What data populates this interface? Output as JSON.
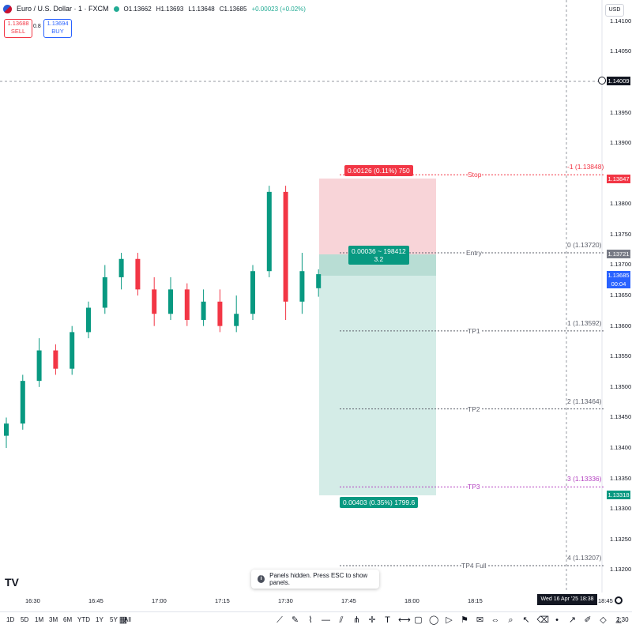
{
  "header": {
    "symbol": "Euro / U.S. Dollar · 1 · FXCM",
    "open": "O1.13662",
    "high": "H1.13693",
    "low": "L1.13648",
    "close": "C1.13685",
    "change": "+0.00023 (+0.02%)"
  },
  "trade": {
    "sell_price": "1.13688",
    "sell_label": "SELL",
    "spread": "0.8",
    "buy_price": "1.13694",
    "buy_label": "BUY"
  },
  "currency": "USD",
  "price_axis": {
    "ticks": [
      "1.14100",
      "1.14050",
      "1.13950",
      "1.13900",
      "1.13800",
      "1.13750",
      "1.13700",
      "1.13650",
      "1.13600",
      "1.13550",
      "1.13500",
      "1.13450",
      "1.13400",
      "1.13350",
      "1.13300",
      "1.13250",
      "1.13200"
    ],
    "crosshair_price": "1.14009",
    "stop_tag": "1.13847",
    "entry_tag": "1.13721",
    "last_price": "1.13685",
    "countdown": "00:04",
    "target_tag": "1.13318"
  },
  "position": {
    "stop_box": "0.00126 (0.11%) 750",
    "entry_box_line1": "0.00036 ~ 198412",
    "entry_box_line2": "3.2",
    "target_box": "0.00403 (0.35%) 1799.6"
  },
  "levels": [
    {
      "name": "Stop",
      "value": "-1 (1.13848)",
      "price": 1.13848,
      "color": "#f23645"
    },
    {
      "name": "Entry",
      "value": "0 (1.13720)",
      "price": 1.1372,
      "color": "#5d606b"
    },
    {
      "name": "TP1",
      "value": "1 (1.13592)",
      "price": 1.13592,
      "color": "#5d606b"
    },
    {
      "name": "TP2",
      "value": "2 (1.13464)",
      "price": 1.13464,
      "color": "#5d606b"
    },
    {
      "name": "TP3",
      "value": "3 (1.13336)",
      "price": 1.13336,
      "color": "#b340c0"
    },
    {
      "name": "TP4 Full",
      "value": "4 (1.13207)",
      "price": 1.13207,
      "color": "#5d606b"
    }
  ],
  "time_axis": {
    "ticks": [
      "16:30",
      "16:45",
      "17:00",
      "17:15",
      "17:30",
      "17:45",
      "18:00",
      "18:15",
      "18:30",
      "18:45"
    ],
    "crosshair_date": "Wed 16 Apr '25   18:38"
  },
  "toast": "Panels hidden. Press ESC to show panels.",
  "bottom": {
    "timeframes": [
      "1D",
      "5D",
      "1M",
      "3M",
      "6M",
      "YTD",
      "1Y",
      "5Y",
      "All"
    ],
    "clock": "2:30",
    "tool_icons": [
      "calendar-icon",
      "trend-line-icon",
      "brush-icon",
      "path-icon",
      "horizontal-line-icon",
      "parallel-channel-icon",
      "pitchfork-icon",
      "crosshair-tool-icon",
      "text-tool-icon",
      "measure-icon",
      "rectangle-icon",
      "circle-icon",
      "play-icon",
      "flag-icon",
      "note-icon",
      "arrows-icon",
      "zoom-icon",
      "cursor-icon",
      "eraser-icon",
      "dot-icon",
      "arrow-tool-icon",
      "pen-icon",
      "diamond-icon",
      "ruler-icon"
    ]
  },
  "chart_data": {
    "type": "candlestick",
    "x": [
      "16:10",
      "16:15",
      "16:20",
      "16:25",
      "16:30",
      "16:35",
      "16:40",
      "16:45",
      "16:50",
      "16:55",
      "17:00",
      "17:05",
      "17:10",
      "17:15",
      "17:20",
      "17:25",
      "17:30",
      "17:35",
      "17:40",
      "17:45"
    ],
    "ylim": [
      1.1318,
      1.1412
    ],
    "candles": [
      [
        1.1342,
        1.1345,
        1.134,
        1.1344
      ],
      [
        1.1344,
        1.1352,
        1.1343,
        1.1351
      ],
      [
        1.1351,
        1.1358,
        1.135,
        1.1356
      ],
      [
        1.1356,
        1.1357,
        1.1352,
        1.1353
      ],
      [
        1.1353,
        1.136,
        1.1352,
        1.1359
      ],
      [
        1.1359,
        1.1364,
        1.1358,
        1.1363
      ],
      [
        1.1363,
        1.137,
        1.1362,
        1.1368
      ],
      [
        1.1368,
        1.1372,
        1.1366,
        1.1371
      ],
      [
        1.1371,
        1.1372,
        1.1365,
        1.1366
      ],
      [
        1.1366,
        1.1368,
        1.136,
        1.1362
      ],
      [
        1.1362,
        1.1368,
        1.1361,
        1.1366
      ],
      [
        1.1366,
        1.1367,
        1.136,
        1.1361
      ],
      [
        1.1361,
        1.1366,
        1.136,
        1.1364
      ],
      [
        1.1364,
        1.1366,
        1.1359,
        1.136
      ],
      [
        1.136,
        1.1365,
        1.1359,
        1.1362
      ],
      [
        1.1362,
        1.137,
        1.1361,
        1.1369
      ],
      [
        1.1369,
        1.1383,
        1.1368,
        1.1382
      ],
      [
        1.1382,
        1.1383,
        1.1361,
        1.1364
      ],
      [
        1.1364,
        1.1372,
        1.1362,
        1.1369
      ],
      [
        1.13662,
        1.13693,
        1.13648,
        1.13685
      ]
    ]
  }
}
